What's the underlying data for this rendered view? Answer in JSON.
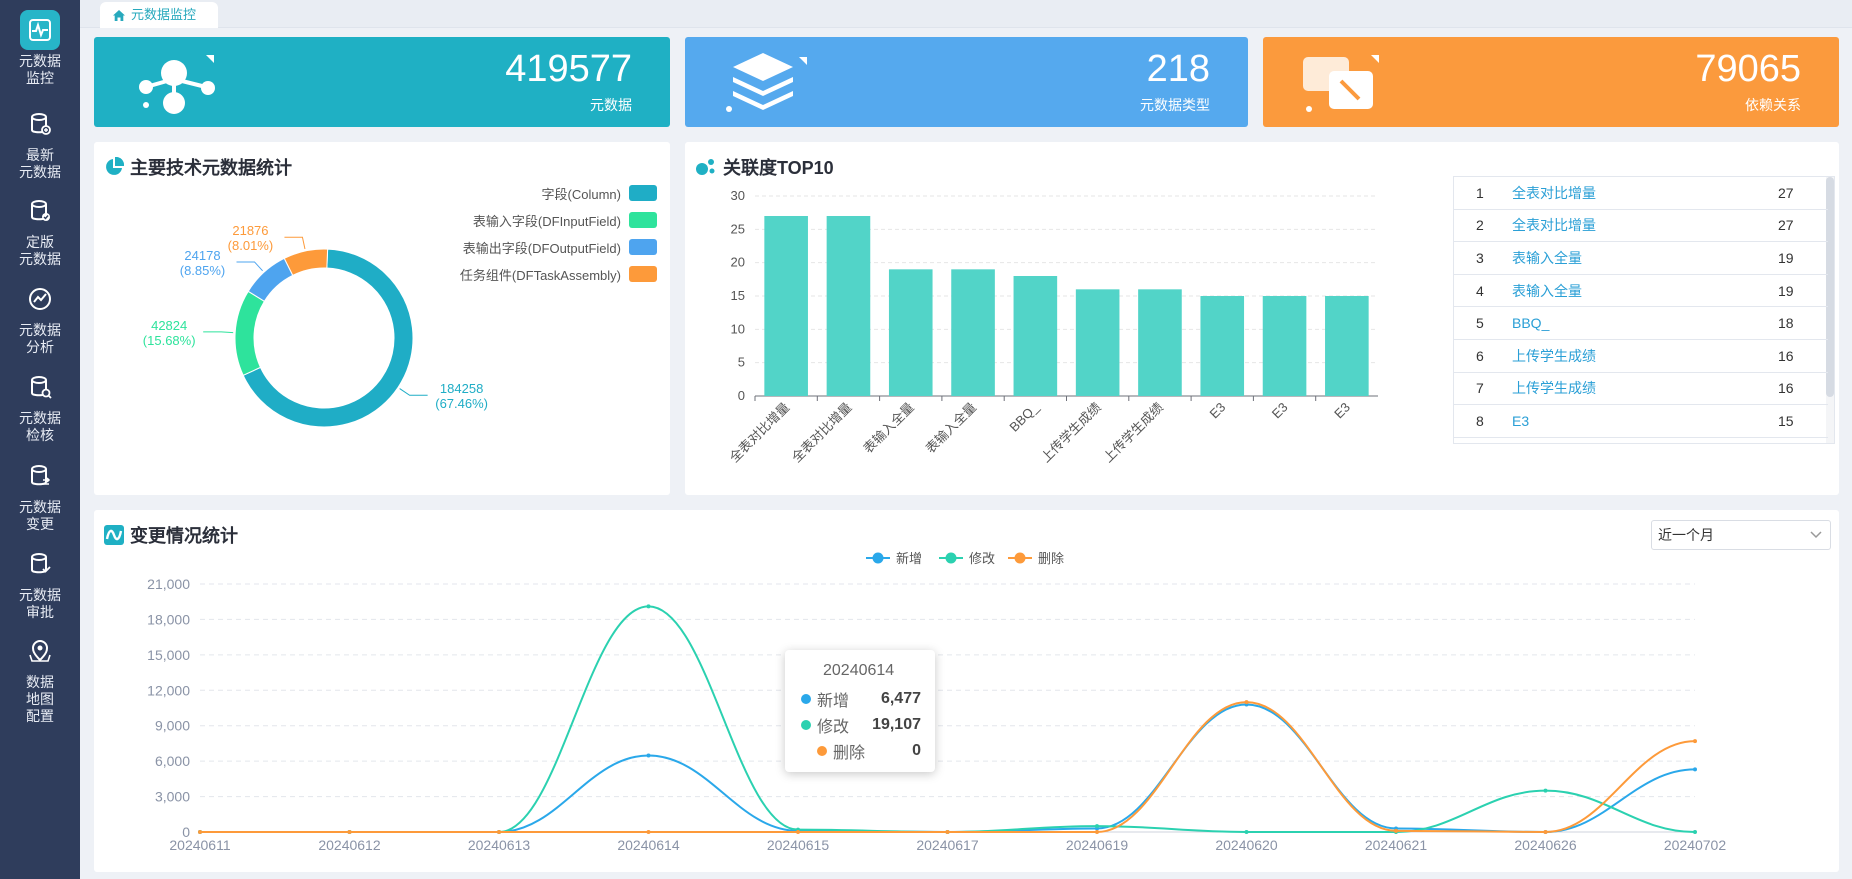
{
  "sidebar": {
    "items": [
      {
        "label1": "元数据",
        "label2": "监控",
        "label3": "",
        "icon": "monitor-icon"
      },
      {
        "label1": "最新",
        "label2": "元数据",
        "label3": "",
        "icon": "database-new-icon"
      },
      {
        "label1": "定版",
        "label2": "元数据",
        "label3": "",
        "icon": "database-check-icon"
      },
      {
        "label1": "元数据",
        "label2": "分析",
        "label3": "",
        "icon": "analysis-icon"
      },
      {
        "label1": "元数据",
        "label2": "检核",
        "label3": "",
        "icon": "database-search-icon"
      },
      {
        "label1": "元数据",
        "label2": "变更",
        "label3": "",
        "icon": "database-change-icon"
      },
      {
        "label1": "元数据",
        "label2": "审批",
        "label3": "",
        "icon": "database-approve-icon"
      },
      {
        "label1": "数据",
        "label2": "地图",
        "label3": "配置",
        "icon": "map-icon"
      }
    ]
  },
  "tab": {
    "label": "元数据监控"
  },
  "stats": [
    {
      "value": "419577",
      "label": "元数据",
      "color": "#1fb0c4"
    },
    {
      "value": "218",
      "label": "元数据类型",
      "color": "#55a9ee"
    },
    {
      "value": "79065",
      "label": "依赖关系",
      "color": "#fb9a3d"
    }
  ],
  "donut_panel": {
    "title": "主要技术元数据统计"
  },
  "top10_panel": {
    "title": "关联度TOP10"
  },
  "trend_panel": {
    "title": "变更情况统计",
    "range_select": "近一个月"
  },
  "ranking": [
    {
      "rank": "1",
      "name": "全表对比增量",
      "count": "27"
    },
    {
      "rank": "2",
      "name": "全表对比增量",
      "count": "27"
    },
    {
      "rank": "3",
      "name": "表输入全量",
      "count": "19"
    },
    {
      "rank": "4",
      "name": "表输入全量",
      "count": "19"
    },
    {
      "rank": "5",
      "name": "BBQ_",
      "count": "18"
    },
    {
      "rank": "6",
      "name": "上传学生成绩",
      "count": "16"
    },
    {
      "rank": "7",
      "name": "上传学生成绩",
      "count": "16"
    },
    {
      "rank": "8",
      "name": "E3",
      "count": "15"
    }
  ],
  "tooltip": {
    "title": "20240614",
    "rows": [
      {
        "name": "新增",
        "value": "6,477"
      },
      {
        "name": "修改",
        "value": "19,107"
      },
      {
        "name": "删除",
        "value": "0"
      }
    ]
  },
  "chart_data": [
    {
      "type": "pie",
      "title": "主要技术元数据统计",
      "donut": true,
      "slices": [
        {
          "name": "字段(Column)",
          "value": 184258,
          "percent": "67.46%",
          "color": "#1fadc6"
        },
        {
          "name": "表输入字段(DFInputField)",
          "value": 42824,
          "percent": "15.68%",
          "color": "#2ee39c"
        },
        {
          "name": "表输出字段(DFOutputField)",
          "value": 24178,
          "percent": "8.85%",
          "color": "#4ea4ef"
        },
        {
          "name": "任务组件(DFTaskAssembly)",
          "value": 21876,
          "percent": "8.01%",
          "color": "#fd9a3a"
        }
      ],
      "legend_position": "top-right"
    },
    {
      "type": "bar",
      "title": "关联度TOP10",
      "categories": [
        "全表对比增量",
        "全表对比增量",
        "表输入全量",
        "表输入全量",
        "BBQ_",
        "上传学生成绩",
        "上传学生成绩",
        "E3",
        "E3",
        "E3"
      ],
      "values": [
        27,
        27,
        19,
        19,
        18,
        16,
        16,
        15,
        15,
        15
      ],
      "ylim": [
        0,
        30
      ],
      "yticks": [
        0,
        5,
        10,
        15,
        20,
        25,
        30
      ],
      "color": "#52d4c8",
      "grid": true
    },
    {
      "type": "line",
      "title": "变更情况统计",
      "x": [
        "20240611",
        "20240612",
        "20240613",
        "20240614",
        "20240615",
        "20240617",
        "20240619",
        "20240620",
        "20240621",
        "20240626",
        "20240702"
      ],
      "ylim": [
        0,
        21000
      ],
      "yticks": [
        "0",
        "3,000",
        "6,000",
        "9,000",
        "12,000",
        "15,000",
        "18,000",
        "21,000"
      ],
      "series": [
        {
          "name": "新增",
          "color": "#2aa8ea",
          "values": [
            0,
            0,
            0,
            6477,
            100,
            0,
            300,
            10800,
            300,
            0,
            5300
          ]
        },
        {
          "name": "修改",
          "color": "#2bd1b0",
          "values": [
            0,
            0,
            0,
            19107,
            200,
            0,
            500,
            0,
            0,
            3500,
            0
          ]
        },
        {
          "name": "删除",
          "color": "#fd9a3a",
          "values": [
            0,
            0,
            0,
            0,
            0,
            0,
            0,
            11000,
            100,
            0,
            7700
          ]
        }
      ],
      "legend_position": "top-center",
      "grid": true
    }
  ]
}
